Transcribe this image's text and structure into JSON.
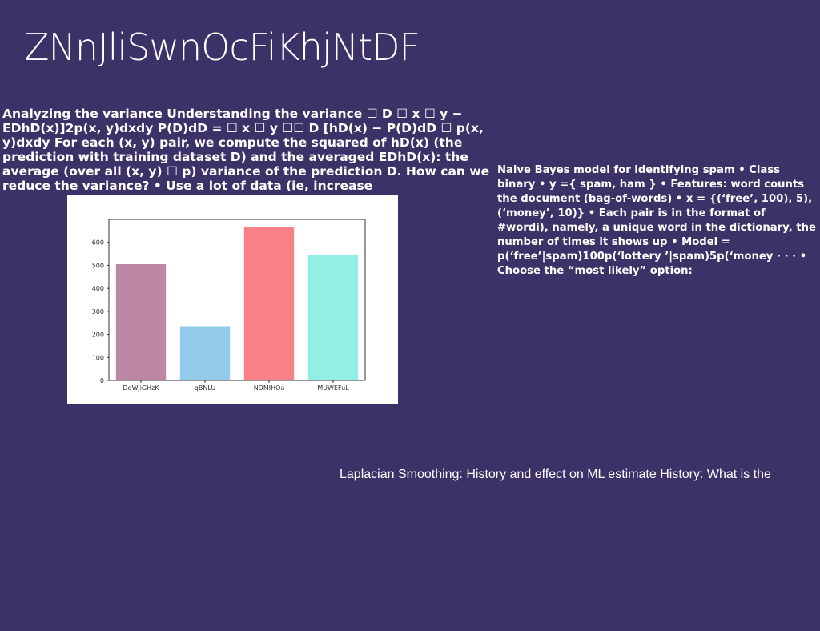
{
  "slide": {
    "title": "ZNnJliSwnOcFiKhjNtDF",
    "left_text": "Analyzing the variance Understanding the variance ☐ D ☐ x ☐ y − EDhD(x)]2p(x, y)dxdy P(D)dD = ☐ x ☐ y ☐☐ D [hD(x) − P(D)dD ☐ p(x, y)dxdy For each (x, y) pair, we compute the squared of hD(x) (the prediction with training dataset D) and the averaged EDhD(x): the average (over all (x, y) ☐ p) variance of the prediction D. How can we reduce the variance? • Use a lot of data (ie, increase",
    "right_text": "Naive Bayes model for identifying spam • Class binary • y ={ spam, ham } • Features: word counts the document (bag-of-words) • x = {(‘free’, 100), 5), (‘money’, 10)} • Each pair is in the format of #wordi), namely, a unique word in the dictionary, the number of times it shows up • Model = p(‘free’|spam)100p(‘lottery ’|spam)5p(‘money · · · • Choose the “most likely” option:",
    "caption": "Laplacian Smoothing: History and effect on ML estimate History: What is the"
  },
  "chart_data": {
    "type": "bar",
    "categories": [
      "DqWjiGHzK",
      "qBNLU",
      "NDMIHOa",
      "MUWEFuL"
    ],
    "values": [
      505,
      235,
      665,
      547
    ],
    "colors": [
      "#bc86a5",
      "#93cbea",
      "#f98086",
      "#93efe6"
    ],
    "yticks": [
      0,
      100,
      200,
      300,
      400,
      500,
      600
    ],
    "ylim": [
      0,
      700
    ],
    "title": "",
    "xlabel": "",
    "ylabel": "",
    "grid": false
  }
}
